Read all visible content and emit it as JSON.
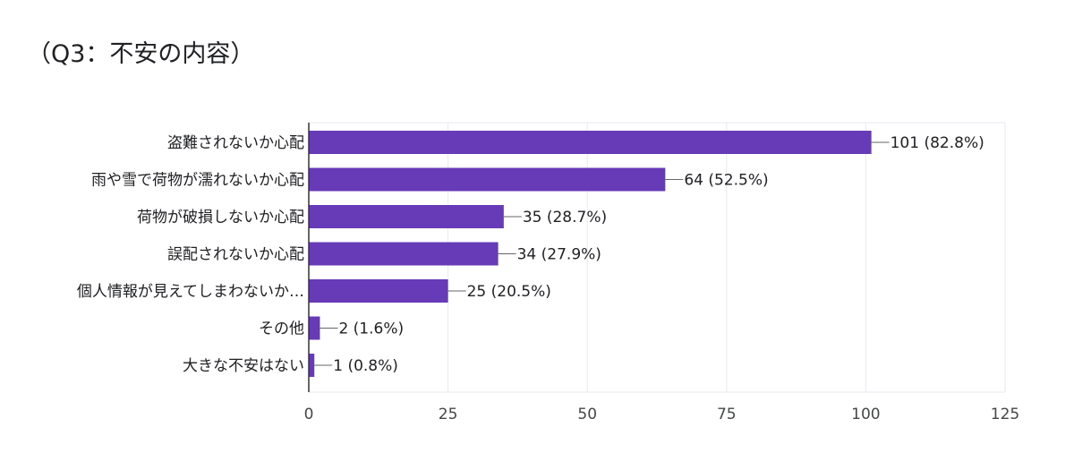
{
  "header": {
    "title": "（Q3：不安の内容）"
  },
  "chart_data": {
    "type": "bar",
    "orientation": "horizontal",
    "title": "（Q3：不安の内容）",
    "categories": [
      "盗難されないか心配",
      "雨や雪で荷物が濡れないか心配",
      "荷物が破損しないか心配",
      "誤配されないか心配",
      "個人情報が見えてしまわないか…",
      "その他",
      "大きな不安はない"
    ],
    "values": [
      101,
      64,
      35,
      34,
      25,
      2,
      1
    ],
    "value_labels": [
      "101 (82.8%)",
      "64 (52.5%)",
      "35 (28.7%)",
      "34 (27.9%)",
      "25 (20.5%)",
      "2 (1.6%)",
      "1 (0.8%)"
    ],
    "xlim": [
      0,
      125
    ],
    "xticks": [
      "0",
      "25",
      "50",
      "75",
      "100",
      "125"
    ],
    "grid": true,
    "bar_color": "#673ab7",
    "grid_color": "#e8eaf0",
    "axis_color": "#333333"
  }
}
